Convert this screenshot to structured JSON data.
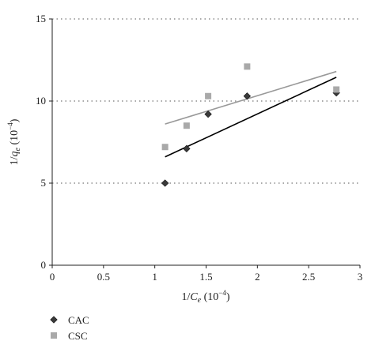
{
  "chart_data": {
    "type": "scatter",
    "title": "",
    "xlabel": {
      "base": "1/",
      "var": "C",
      "sub": "e",
      "unit": " (10",
      "exp": "−4",
      "close": ")"
    },
    "ylabel": {
      "base": "1/",
      "var": "q",
      "sub": "e",
      "unit": " (10",
      "exp": "−4",
      "close": ")"
    },
    "xlim": [
      0,
      3
    ],
    "ylim": [
      0,
      15
    ],
    "xticks": [
      0,
      0.5,
      1,
      1.5,
      2,
      2.5,
      3
    ],
    "xtick_labels": [
      "0",
      "0.5",
      "1",
      "1.5",
      "2",
      "2.5",
      "3"
    ],
    "yticks": [
      0,
      5,
      10,
      15
    ],
    "ytick_labels": [
      "0",
      "5",
      "10",
      "15"
    ],
    "grid": "horizontal dotted",
    "legend_position": "bottom-left",
    "series": [
      {
        "name": "CAC",
        "marker": "diamond",
        "color": "#3a3a3a",
        "points": [
          [
            1.1,
            5.0
          ],
          [
            1.31,
            7.1
          ],
          [
            1.52,
            9.2
          ],
          [
            1.9,
            10.3
          ],
          [
            2.77,
            10.5
          ]
        ],
        "trendline": {
          "x": [
            1.1,
            2.77
          ],
          "y": [
            6.6,
            11.45
          ],
          "color": "#000000"
        }
      },
      {
        "name": "CSC",
        "marker": "square",
        "color": "#a9a9a9",
        "points": [
          [
            1.1,
            7.2
          ],
          [
            1.31,
            8.5
          ],
          [
            1.52,
            10.3
          ],
          [
            1.9,
            12.1
          ],
          [
            2.77,
            10.7
          ]
        ],
        "trendline": {
          "x": [
            1.1,
            2.77
          ],
          "y": [
            8.6,
            11.8
          ],
          "color": "#999999"
        }
      }
    ]
  }
}
